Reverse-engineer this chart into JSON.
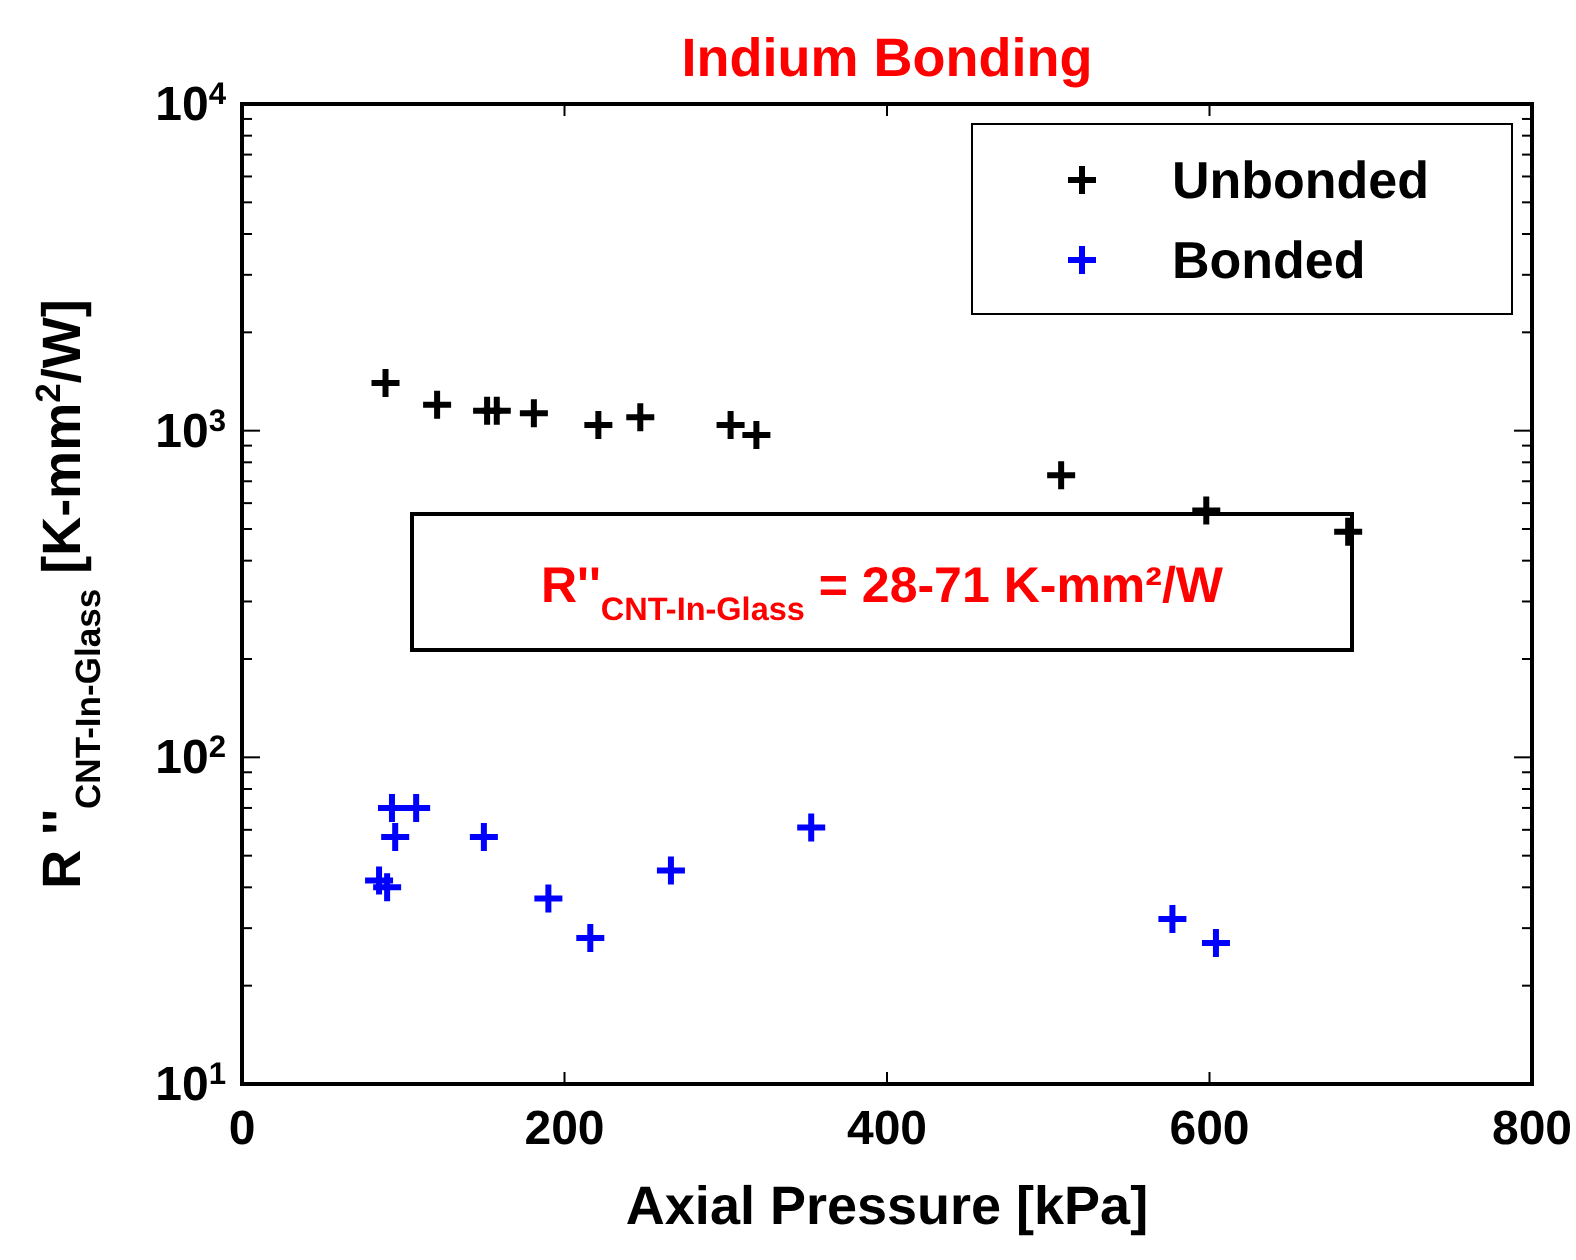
{
  "chart_data": {
    "type": "scatter",
    "title": "Indium Bonding",
    "xlabel": "Axial Pressure [kPa]",
    "ylabel": "R ''$_{CNT-In-Glass}$ [K-mm$^{2}$/W]",
    "log": "y",
    "xlim": [
      0,
      800
    ],
    "xticks": [
      0,
      200,
      400,
      600,
      800
    ],
    "ylim": [
      10,
      10000
    ],
    "yticks": [
      {
        "value": 10,
        "label": "10$^{1}$"
      },
      {
        "value": 100,
        "label": "10$^{2}$"
      },
      {
        "value": 1000,
        "label": "10$^{3}$"
      },
      {
        "value": 10000,
        "label": "10$^{4}$"
      }
    ],
    "grid": false,
    "legend": "top right",
    "marker": "cross",
    "annotations": [
      "R''$_{CNT-In-Glass}$ = 28-71 K-mm²/W"
    ],
    "series": [
      {
        "name": "Unbonded",
        "color": "#000000",
        "x": [
          89,
          121,
          152,
          158,
          181,
          221,
          247,
          303,
          319,
          508,
          598,
          686
        ],
        "values": [
          1400,
          1200,
          1150,
          1150,
          1130,
          1040,
          1100,
          1040,
          970,
          730,
          570,
          490
        ]
      },
      {
        "name": "Bonded",
        "color": "#0000ff",
        "x": [
          93,
          108,
          95,
          85,
          90,
          150,
          190,
          216,
          266,
          353,
          577,
          604
        ],
        "values": [
          70,
          70,
          57,
          42,
          40,
          57,
          37,
          28,
          45,
          61,
          32,
          27
        ]
      }
    ]
  }
}
